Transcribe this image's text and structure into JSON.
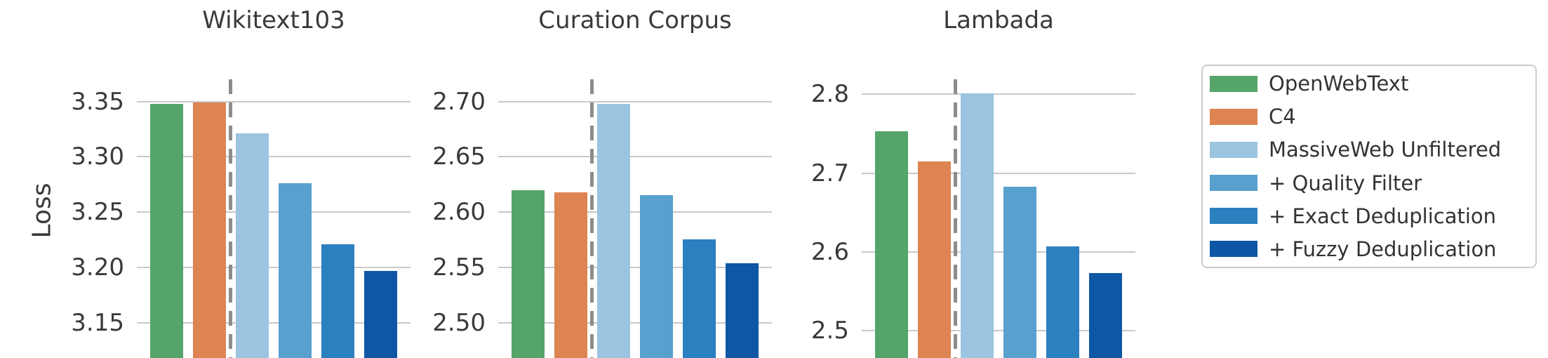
{
  "figure": {
    "ylabel": "Loss",
    "background": "#ffffff",
    "text_color": "#3a3a3a",
    "grid_color": "#c9c9c9",
    "separator_color": "#8c8c8c"
  },
  "legend": {
    "items": [
      {
        "label": "OpenWebText",
        "color": "#55a469"
      },
      {
        "label": "C4",
        "color": "#dd8452"
      },
      {
        "label": "MassiveWeb Unfiltered",
        "color": "#9ac4e0"
      },
      {
        "label": "+ Quality Filter",
        "color": "#58a0ce"
      },
      {
        "label": "+ Exact Deduplication",
        "color": "#2b80bf"
      },
      {
        "label": "+ Fuzzy Deduplication",
        "color": "#0d57a4"
      }
    ]
  },
  "chart_data": [
    {
      "type": "bar",
      "title": "Wikitext103",
      "ylabel": "Loss",
      "categories": [
        "OpenWebText",
        "C4",
        "MassiveWeb Unfiltered",
        "+ Quality Filter",
        "+ Exact Deduplication",
        "+ Fuzzy Deduplication"
      ],
      "values": [
        3.348,
        3.349,
        3.321,
        3.276,
        3.221,
        3.197
      ],
      "bar_colors": [
        "#55a469",
        "#dd8452",
        "#9ac4e0",
        "#58a0ce",
        "#2b80bf",
        "#0d57a4"
      ],
      "yticks": [
        3.35,
        3.3,
        3.25,
        3.2,
        3.15
      ],
      "ytick_labels": [
        "3.35",
        "3.30",
        "3.25",
        "3.20",
        "3.15"
      ],
      "ylim": [
        3.118,
        3.37
      ],
      "grid": true,
      "separator_after_category": 2,
      "legend_position": "right"
    },
    {
      "type": "bar",
      "title": "Curation Corpus",
      "ylabel": "Loss",
      "categories": [
        "OpenWebText",
        "C4",
        "MassiveWeb Unfiltered",
        "+ Quality Filter",
        "+ Exact Deduplication",
        "+ Fuzzy Deduplication"
      ],
      "values": [
        2.62,
        2.618,
        2.698,
        2.615,
        2.575,
        2.554
      ],
      "bar_colors": [
        "#55a469",
        "#dd8452",
        "#9ac4e0",
        "#58a0ce",
        "#2b80bf",
        "#0d57a4"
      ],
      "yticks": [
        2.7,
        2.65,
        2.6,
        2.55,
        2.5
      ],
      "ytick_labels": [
        "2.70",
        "2.65",
        "2.60",
        "2.55",
        "2.50"
      ],
      "ylim": [
        2.468,
        2.72
      ],
      "grid": true,
      "separator_after_category": 2,
      "legend_position": "right"
    },
    {
      "type": "bar",
      "title": "Lambada",
      "ylabel": "Loss",
      "categories": [
        "OpenWebText",
        "C4",
        "MassiveWeb Unfiltered",
        "+ Quality Filter",
        "+ Exact Deduplication",
        "+ Fuzzy Deduplication"
      ],
      "values": [
        2.753,
        2.715,
        2.801,
        2.683,
        2.607,
        2.573
      ],
      "bar_colors": [
        "#55a469",
        "#dd8452",
        "#9ac4e0",
        "#58a0ce",
        "#2b80bf",
        "#0d57a4"
      ],
      "yticks": [
        2.8,
        2.7,
        2.6,
        2.5
      ],
      "ytick_labels": [
        "2.8",
        "2.7",
        "2.6",
        "2.5"
      ],
      "ylim": [
        2.465,
        2.819
      ],
      "grid": true,
      "separator_after_category": 2,
      "legend_position": "right"
    }
  ]
}
